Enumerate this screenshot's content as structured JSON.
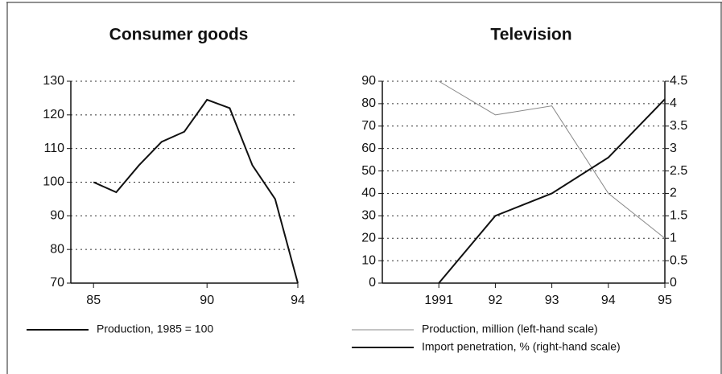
{
  "chart_data": [
    {
      "type": "line",
      "title": "Consumer goods",
      "x": [
        85,
        86,
        87,
        88,
        89,
        90,
        91,
        92,
        93,
        94
      ],
      "series": [
        {
          "name": "Production, 1985 = 100",
          "color": "#111111",
          "values": [
            100,
            97,
            105,
            112,
            115,
            124.5,
            122,
            105,
            95,
            70
          ]
        }
      ],
      "xlim": [
        84,
        94
      ],
      "xticks": [
        85,
        90,
        94
      ],
      "ylim": [
        70,
        130
      ],
      "yticks": [
        70,
        80,
        90,
        100,
        110,
        120,
        130
      ],
      "grid": true
    },
    {
      "type": "line",
      "title": "Television",
      "x": [
        1991,
        1992,
        1993,
        1994,
        1995
      ],
      "series": [
        {
          "name": "Production, million (left-hand scale)",
          "color": "#888888",
          "values": [
            90,
            75,
            79,
            40,
            20
          ]
        },
        {
          "name": "Import penetration, % (right-hand scale)",
          "color": "#111111",
          "axis": "y2",
          "values": [
            0,
            1.5,
            2,
            2.8,
            4.1
          ]
        }
      ],
      "xlim": [
        1990,
        1995
      ],
      "xticks": [
        1991,
        {
          "value": 1992,
          "label": "92"
        },
        {
          "value": 1993,
          "label": "93"
        },
        {
          "value": 1994,
          "label": "94"
        },
        {
          "value": 1995,
          "label": "95"
        }
      ],
      "ylim": [
        0,
        90
      ],
      "yticks": [
        0,
        10,
        20,
        30,
        40,
        50,
        60,
        70,
        80,
        90
      ],
      "y2lim": [
        0,
        4.5
      ],
      "y2ticks": [
        0,
        0.5,
        1,
        1.5,
        2,
        2.5,
        3,
        3.5,
        4,
        4.5
      ],
      "grid": true
    }
  ]
}
